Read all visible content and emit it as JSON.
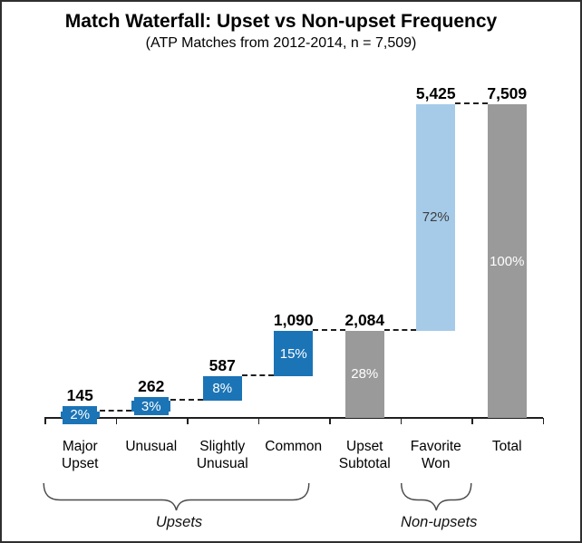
{
  "chart_data": {
    "type": "bar",
    "variant": "waterfall",
    "title": "Match Waterfall: Upset vs Non-upset Frequency",
    "subtitle": "(ATP Matches from 2012-2014, n = 7,509)",
    "total": 7509,
    "ylim": [
      0,
      7509
    ],
    "grid": false,
    "legend": "none",
    "categories": [
      "Major Upset",
      "Unusual",
      "Slightly Unusual",
      "Common",
      "Upset Subtotal",
      "Favorite Won",
      "Total"
    ],
    "bars": [
      {
        "category": "Major Upset",
        "label_lines": [
          "Major",
          "Upset"
        ],
        "value": 145,
        "value_label": "145",
        "start": 0,
        "end": 145,
        "percent": "2%",
        "role": "upset"
      },
      {
        "category": "Unusual",
        "label_lines": [
          "Unusual"
        ],
        "value": 262,
        "value_label": "262",
        "start": 145,
        "end": 407,
        "percent": "3%",
        "role": "upset"
      },
      {
        "category": "Slightly Unusual",
        "label_lines": [
          "Slightly",
          "Unusual"
        ],
        "value": 587,
        "value_label": "587",
        "start": 407,
        "end": 994,
        "percent": "8%",
        "role": "upset"
      },
      {
        "category": "Common",
        "label_lines": [
          "Common"
        ],
        "value": 1090,
        "value_label": "1,090",
        "start": 994,
        "end": 2084,
        "percent": "15%",
        "role": "upset"
      },
      {
        "category": "Upset Subtotal",
        "label_lines": [
          "Upset",
          "Subtotal"
        ],
        "value": 2084,
        "value_label": "2,084",
        "start": 0,
        "end": 2084,
        "percent": "28%",
        "role": "neutral"
      },
      {
        "category": "Favorite Won",
        "label_lines": [
          "Favorite",
          "Won"
        ],
        "value": 5425,
        "value_label": "5,425",
        "start": 2084,
        "end": 7509,
        "percent": "72%",
        "role": "nonupset"
      },
      {
        "category": "Total",
        "label_lines": [
          "Total"
        ],
        "value": 7509,
        "value_label": "7,509",
        "start": 0,
        "end": 7509,
        "percent": "100%",
        "role": "neutral"
      }
    ],
    "connectors": "dashed lines join the cumulative level of each bar to the next bar",
    "groups": [
      {
        "label": "Upsets",
        "from_index": 0,
        "to_index": 3
      },
      {
        "label": "Non-upsets",
        "from_index": 5,
        "to_index": 5
      }
    ],
    "colors": {
      "bar_upset": "#1b74b6",
      "bar_neutral": "#9a9a9a",
      "bar_nonupset": "#a6cbe9",
      "pct_on_upset": "#ffffff",
      "pct_on_neutral": "#ffffff",
      "pct_on_nonupset": "#3d3d3d",
      "axis": "#1f1f1f",
      "brace": "#4a4a4a",
      "text": "#000000"
    }
  }
}
